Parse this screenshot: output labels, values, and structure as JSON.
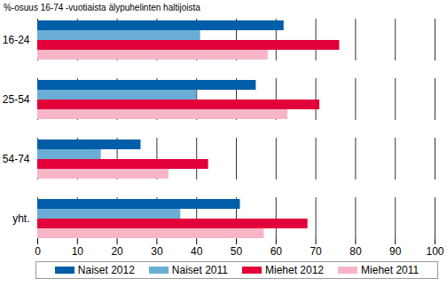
{
  "chart_data": {
    "type": "bar",
    "orientation": "horizontal",
    "title": "%-osuus 16-74 -vuotiaista älypuhelinten haltijoista",
    "categories": [
      "16-24",
      "25-54",
      "54-74",
      "yht."
    ],
    "series": [
      {
        "name": "Naiset 2012",
        "color": "#005ea8",
        "values": [
          62,
          55,
          26,
          51
        ]
      },
      {
        "name": "Naiset 2011",
        "color": "#6aaed6",
        "values": [
          41,
          40,
          16,
          36
        ]
      },
      {
        "name": "Miehet 2012",
        "color": "#e2003a",
        "values": [
          76,
          71,
          43,
          68
        ]
      },
      {
        "name": "Miehet 2011",
        "color": "#f7b5c7",
        "values": [
          58,
          63,
          33,
          57
        ]
      }
    ],
    "xlim": [
      0,
      100
    ],
    "xticks": [
      0,
      10,
      20,
      30,
      40,
      50,
      60,
      70,
      80,
      90,
      100
    ],
    "grid": true,
    "legend": "bottom"
  }
}
